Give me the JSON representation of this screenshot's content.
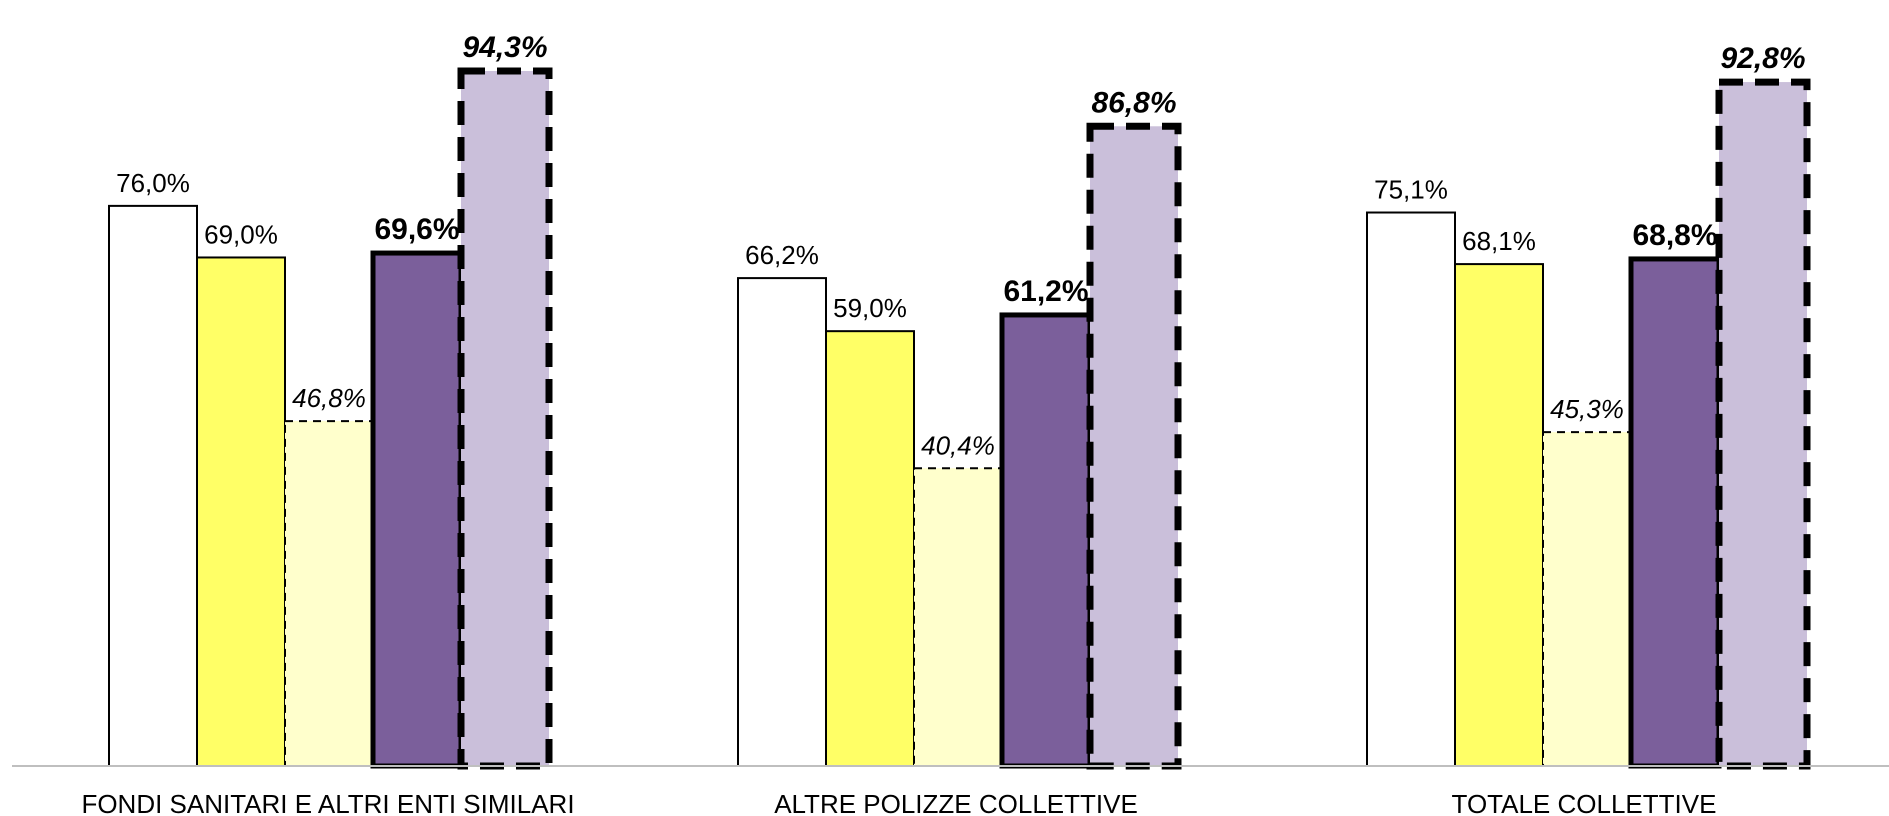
{
  "chart_data": {
    "type": "bar",
    "title": "",
    "xlabel": "",
    "ylabel": "",
    "ylim": [
      0,
      100
    ],
    "grid": false,
    "legend": "none",
    "categories": [
      "FONDI SANITARI E ALTRI ENTI SIMILARI",
      "ALTRE POLIZZE COLLETTIVE",
      "TOTALE COLLETTIVE"
    ],
    "series": [
      {
        "values": [
          76.0,
          66.2,
          75.1
        ],
        "labels": [
          "76,0%",
          "66,2%",
          "75,1%"
        ],
        "fill": "#ffffff",
        "stroke": "#000000",
        "style": "thin",
        "label_style": "normal"
      },
      {
        "values": [
          69.0,
          59.0,
          68.1
        ],
        "labels": [
          "69,0%",
          "59,0%",
          "68,1%"
        ],
        "fill": "#ffff66",
        "stroke": "#000000",
        "style": "thin",
        "label_style": "normal"
      },
      {
        "values": [
          46.8,
          40.4,
          45.3
        ],
        "labels": [
          "46,8%",
          "40,4%",
          "45,3%"
        ],
        "fill": "#ffffcc",
        "stroke": "#000000",
        "style": "dashed-thin",
        "label_style": "italic"
      },
      {
        "values": [
          69.6,
          61.2,
          68.8
        ],
        "labels": [
          "69,6%",
          "61,2%",
          "68,8%"
        ],
        "fill": "#7b5f9b",
        "stroke": "#000000",
        "style": "thick",
        "label_style": "bold"
      },
      {
        "values": [
          94.3,
          86.8,
          92.8
        ],
        "labels": [
          "94,3%",
          "86,8%",
          "92,8%"
        ],
        "fill": "#cabfda",
        "stroke": "#000000",
        "style": "dashed-thick",
        "label_style": "bold-italic"
      }
    ]
  }
}
